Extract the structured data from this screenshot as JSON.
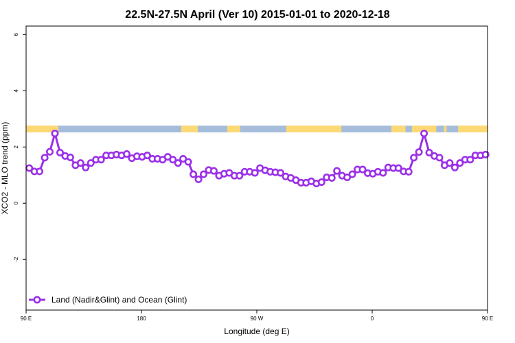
{
  "chart_data": {
    "type": "line",
    "title": "22.5N-27.5N April (Ver 10)   2015-01-01 to 2020-12-18",
    "xlabel": "Longitude (deg E)",
    "ylabel": "XCO2 - MLO trend (ppm)",
    "xlim": [
      90,
      450
    ],
    "ylim": [
      -3.8,
      6.3
    ],
    "x_ticks": [
      {
        "value": 90,
        "label": "90 E"
      },
      {
        "value": 180,
        "label": "180"
      },
      {
        "value": 270,
        "label": "90 W"
      },
      {
        "value": 360,
        "label": "0"
      },
      {
        "value": 450,
        "label": "90 E"
      },
      {
        "value": 540,
        "label": "180"
      }
    ],
    "y_ticks": [
      {
        "value": -2,
        "label": "-2"
      },
      {
        "value": 0,
        "label": "0"
      },
      {
        "value": 2,
        "label": "2"
      },
      {
        "value": 4,
        "label": "4"
      },
      {
        "value": 6,
        "label": "6"
      }
    ],
    "land_ocean_strip": {
      "y_range": [
        2.52,
        2.76
      ],
      "ocean_color": "#a5bddb",
      "land_color": "#fdd976",
      "land_segments": [
        [
          90,
          115
        ],
        [
          211,
          224
        ],
        [
          247,
          257
        ],
        [
          293,
          336
        ],
        [
          375,
          386
        ],
        [
          391,
          410
        ],
        [
          416,
          418
        ],
        [
          427,
          450
        ],
        [
          540,
          540
        ]
      ]
    },
    "series": [
      {
        "name": "Land (Nadir&Glint) and Ocean (Glint)",
        "color": "#9b30e8",
        "x": [
          92.5,
          96.5,
          100.5,
          104.5,
          108.5,
          112.5,
          116.5,
          120.5,
          124.5,
          128.5,
          132.5,
          136.5,
          140.5,
          144.5,
          148.5,
          152.5,
          156.5,
          160.5,
          164.5,
          168.5,
          172.5,
          176.5,
          180.5,
          184.5,
          188.5,
          192.5,
          196.5,
          200.5,
          204.5,
          208.5,
          212.5,
          216.5,
          220.5,
          224.5,
          228.5,
          232.5,
          236.5,
          240.5,
          244.5,
          248.5,
          252.5,
          256.5,
          260.5,
          264.5,
          268.5,
          272.5,
          276.5,
          280.5,
          284.5,
          288.5,
          292.5,
          296.5,
          300.5,
          304.5,
          308.5,
          312.5,
          316.5,
          320.5,
          324.5,
          328.5,
          332.5,
          336.5,
          340.5,
          344.5,
          348.5,
          352.5,
          356.5,
          360.5,
          364.5,
          368.5,
          372.5,
          376.5,
          380.5,
          384.5,
          388.5,
          392.5,
          396.5,
          400.5,
          404.5,
          408.5,
          412.5,
          416.5,
          420.5,
          424.5,
          428.5,
          432.5,
          436.5,
          440.5,
          444.5,
          448.5
        ],
        "values": [
          1.25,
          1.13,
          1.13,
          1.62,
          1.83,
          2.48,
          1.8,
          1.68,
          1.63,
          1.35,
          1.43,
          1.27,
          1.43,
          1.55,
          1.55,
          1.7,
          1.7,
          1.73,
          1.7,
          1.75,
          1.6,
          1.67,
          1.65,
          1.7,
          1.58,
          1.58,
          1.55,
          1.65,
          1.55,
          1.43,
          1.58,
          1.47,
          1.03,
          0.85,
          1.03,
          1.18,
          1.15,
          0.98,
          1.05,
          1.08,
          0.98,
          0.98,
          1.12,
          1.12,
          1.08,
          1.25,
          1.17,
          1.12,
          1.1,
          1.08,
          0.95,
          0.9,
          0.82,
          0.73,
          0.73,
          0.78,
          0.7,
          0.75,
          0.92,
          0.9,
          1.15,
          0.98,
          0.92,
          1.03,
          1.2,
          1.2,
          1.07,
          1.05,
          1.12,
          1.08,
          1.27,
          1.25,
          1.25,
          1.13,
          1.12,
          1.62,
          1.82,
          2.48,
          1.8,
          1.68,
          1.62,
          1.35,
          1.43,
          1.27,
          1.43,
          1.55,
          1.55,
          1.7,
          1.7,
          1.73
        ]
      }
    ],
    "legend": {
      "position": "bottom-left"
    },
    "grid": false
  }
}
